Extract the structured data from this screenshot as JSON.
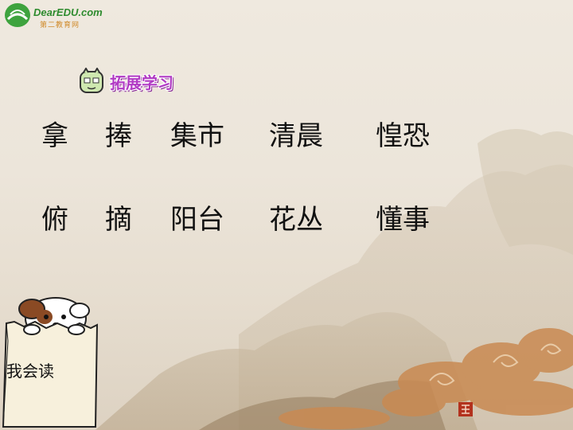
{
  "logo": {
    "brand": "DearEDU.com",
    "sub": "第二教育网",
    "icon": "book-globe-icon"
  },
  "heading": {
    "icon": "green-character-icon",
    "title": "拓展学习"
  },
  "words": {
    "row1": [
      "拿",
      "捧",
      "集市",
      "清晨",
      "惶恐"
    ],
    "row2": [
      "俯",
      "摘",
      "阳台",
      "花丛",
      "懂事"
    ]
  },
  "mascot": {
    "icon": "dog-in-paper-bag-icon",
    "label": "我会读"
  },
  "colors": {
    "title": "#b13bc4",
    "logo_green": "#2e8b2e",
    "cloud": "#c98a52",
    "seal": "#b3321e"
  }
}
